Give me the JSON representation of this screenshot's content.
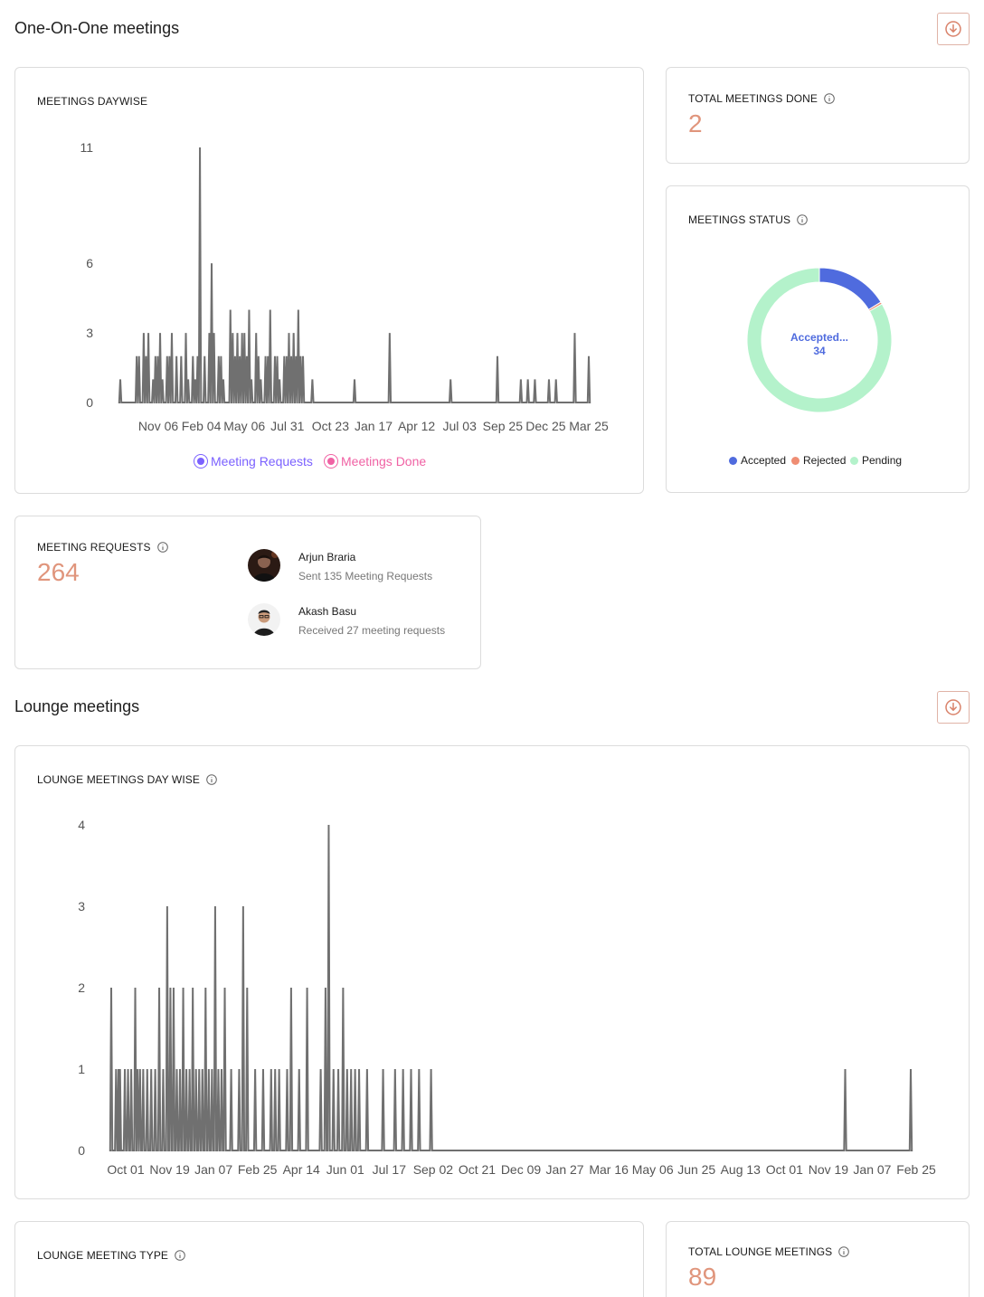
{
  "one_on_one": {
    "title": "One-On-One meetings",
    "download_icon": "download-circle-icon",
    "daywise": {
      "label": "MEETINGS DAYWISE",
      "legend": [
        "Meeting Requests",
        "Meetings Done"
      ],
      "legend_colors": [
        "#7b61ff",
        "#f062a4"
      ]
    },
    "total_done": {
      "label": "TOTAL MEETINGS DONE",
      "value": "2"
    },
    "status": {
      "label": "MEETINGS STATUS",
      "center_label": "Accepted...",
      "center_value": "34",
      "legend": [
        {
          "name": "Accepted",
          "color": "#4f6bde"
        },
        {
          "name": "Rejected",
          "color": "#ef8d73"
        },
        {
          "name": "Pending",
          "color": "#b4f2cb"
        }
      ]
    },
    "requests": {
      "label": "MEETING REQUESTS",
      "value": "264",
      "people": [
        {
          "name": "Arjun Braria",
          "desc": "Sent 135 Meeting Requests"
        },
        {
          "name": "Akash Basu",
          "desc": "Received 27 meeting requests"
        }
      ]
    }
  },
  "lounge": {
    "title": "Lounge meetings",
    "download_icon": "download-circle-icon",
    "daywise": {
      "label": "LOUNGE MEETINGS DAY WISE"
    },
    "type": {
      "label": "LOUNGE MEETING TYPE"
    },
    "total": {
      "label": "TOTAL LOUNGE MEETINGS",
      "value": "89"
    }
  },
  "chart_data": [
    {
      "type": "line",
      "title": "MEETINGS DAYWISE",
      "y_ticks": [
        0,
        3,
        6,
        11
      ],
      "ylim": [
        0,
        11
      ],
      "x_ticks": [
        "Nov 06",
        "Feb 04",
        "May 06",
        "Jul 31",
        "Oct 23",
        "Jan 17",
        "Apr 12",
        "Jul 03",
        "Sep 25",
        "Dec 25",
        "Mar 25"
      ],
      "series": [
        {
          "name": "Meeting Requests",
          "spikes": [
            [
              0.0,
              1
            ],
            [
              0.035,
              2
            ],
            [
              0.04,
              2
            ],
            [
              0.05,
              3
            ],
            [
              0.055,
              2
            ],
            [
              0.06,
              3
            ],
            [
              0.07,
              1
            ],
            [
              0.075,
              2
            ],
            [
              0.08,
              2
            ],
            [
              0.085,
              3
            ],
            [
              0.09,
              1
            ],
            [
              0.1,
              2
            ],
            [
              0.105,
              2
            ],
            [
              0.11,
              3
            ],
            [
              0.12,
              2
            ],
            [
              0.13,
              2
            ],
            [
              0.14,
              3
            ],
            [
              0.145,
              1
            ],
            [
              0.155,
              2
            ],
            [
              0.16,
              1
            ],
            [
              0.165,
              2
            ],
            [
              0.17,
              11
            ],
            [
              0.18,
              2
            ],
            [
              0.19,
              3
            ],
            [
              0.195,
              6
            ],
            [
              0.2,
              3
            ],
            [
              0.21,
              2
            ],
            [
              0.215,
              2
            ],
            [
              0.22,
              1
            ],
            [
              0.235,
              4
            ],
            [
              0.24,
              3
            ],
            [
              0.245,
              2
            ],
            [
              0.25,
              3
            ],
            [
              0.255,
              2
            ],
            [
              0.26,
              3
            ],
            [
              0.265,
              3
            ],
            [
              0.27,
              2
            ],
            [
              0.275,
              4
            ],
            [
              0.28,
              1
            ],
            [
              0.29,
              3
            ],
            [
              0.295,
              2
            ],
            [
              0.3,
              1
            ],
            [
              0.31,
              2
            ],
            [
              0.315,
              2
            ],
            [
              0.32,
              4
            ],
            [
              0.33,
              2
            ],
            [
              0.335,
              2
            ],
            [
              0.34,
              1
            ],
            [
              0.35,
              2
            ],
            [
              0.355,
              2
            ],
            [
              0.36,
              3
            ],
            [
              0.365,
              2
            ],
            [
              0.37,
              3
            ],
            [
              0.375,
              2
            ],
            [
              0.38,
              4
            ],
            [
              0.385,
              2
            ],
            [
              0.39,
              2
            ],
            [
              0.41,
              1
            ],
            [
              0.5,
              1
            ],
            [
              0.575,
              3
            ],
            [
              0.705,
              1
            ],
            [
              0.805,
              2
            ],
            [
              0.855,
              1
            ],
            [
              0.87,
              1
            ],
            [
              0.885,
              1
            ],
            [
              0.915,
              1
            ],
            [
              0.93,
              1
            ],
            [
              0.97,
              3
            ],
            [
              1.0,
              2
            ]
          ]
        }
      ]
    },
    {
      "type": "line",
      "title": "LOUNGE MEETINGS DAY WISE",
      "y_ticks": [
        0,
        1,
        2,
        3,
        4
      ],
      "ylim": [
        0,
        4
      ],
      "x_ticks": [
        "Oct 01",
        "Nov 19",
        "Jan 07",
        "Feb 25",
        "Apr 14",
        "Jun 01",
        "Jul 17",
        "Sep 02",
        "Oct 21",
        "Dec 09",
        "Jan 27",
        "Mar 16",
        "May 06",
        "Jun 25",
        "Aug 13",
        "Oct 01",
        "Nov 19",
        "Jan 07",
        "Feb 25"
      ],
      "series": [
        {
          "name": "",
          "spikes": [
            [
              0.0,
              2
            ],
            [
              0.006,
              1
            ],
            [
              0.009,
              1
            ],
            [
              0.011,
              1
            ],
            [
              0.017,
              1
            ],
            [
              0.021,
              1
            ],
            [
              0.025,
              1
            ],
            [
              0.03,
              2
            ],
            [
              0.033,
              1
            ],
            [
              0.036,
              1
            ],
            [
              0.04,
              1
            ],
            [
              0.045,
              1
            ],
            [
              0.05,
              1
            ],
            [
              0.055,
              1
            ],
            [
              0.06,
              2
            ],
            [
              0.065,
              1
            ],
            [
              0.07,
              3
            ],
            [
              0.074,
              2
            ],
            [
              0.078,
              2
            ],
            [
              0.082,
              1
            ],
            [
              0.086,
              1
            ],
            [
              0.09,
              2
            ],
            [
              0.094,
              1
            ],
            [
              0.098,
              1
            ],
            [
              0.102,
              2
            ],
            [
              0.106,
              1
            ],
            [
              0.11,
              1
            ],
            [
              0.114,
              1
            ],
            [
              0.118,
              2
            ],
            [
              0.122,
              1
            ],
            [
              0.126,
              1
            ],
            [
              0.13,
              3
            ],
            [
              0.134,
              1
            ],
            [
              0.138,
              1
            ],
            [
              0.142,
              2
            ],
            [
              0.15,
              1
            ],
            [
              0.16,
              1
            ],
            [
              0.165,
              3
            ],
            [
              0.17,
              2
            ],
            [
              0.18,
              1
            ],
            [
              0.19,
              1
            ],
            [
              0.2,
              1
            ],
            [
              0.205,
              1
            ],
            [
              0.21,
              1
            ],
            [
              0.22,
              1
            ],
            [
              0.225,
              2
            ],
            [
              0.235,
              1
            ],
            [
              0.245,
              2
            ],
            [
              0.262,
              1
            ],
            [
              0.268,
              2
            ],
            [
              0.272,
              4
            ],
            [
              0.278,
              1
            ],
            [
              0.284,
              1
            ],
            [
              0.29,
              2
            ],
            [
              0.295,
              1
            ],
            [
              0.3,
              1
            ],
            [
              0.305,
              1
            ],
            [
              0.31,
              1
            ],
            [
              0.32,
              1
            ],
            [
              0.34,
              1
            ],
            [
              0.355,
              1
            ],
            [
              0.365,
              1
            ],
            [
              0.375,
              1
            ],
            [
              0.385,
              1
            ],
            [
              0.4,
              1
            ],
            [
              0.918,
              1
            ],
            [
              1.0,
              1
            ]
          ]
        }
      ]
    },
    {
      "type": "pie",
      "title": "MEETINGS STATUS",
      "categories": [
        "Accepted",
        "Rejected",
        "Pending"
      ],
      "values": [
        34,
        1,
        175
      ]
    }
  ]
}
